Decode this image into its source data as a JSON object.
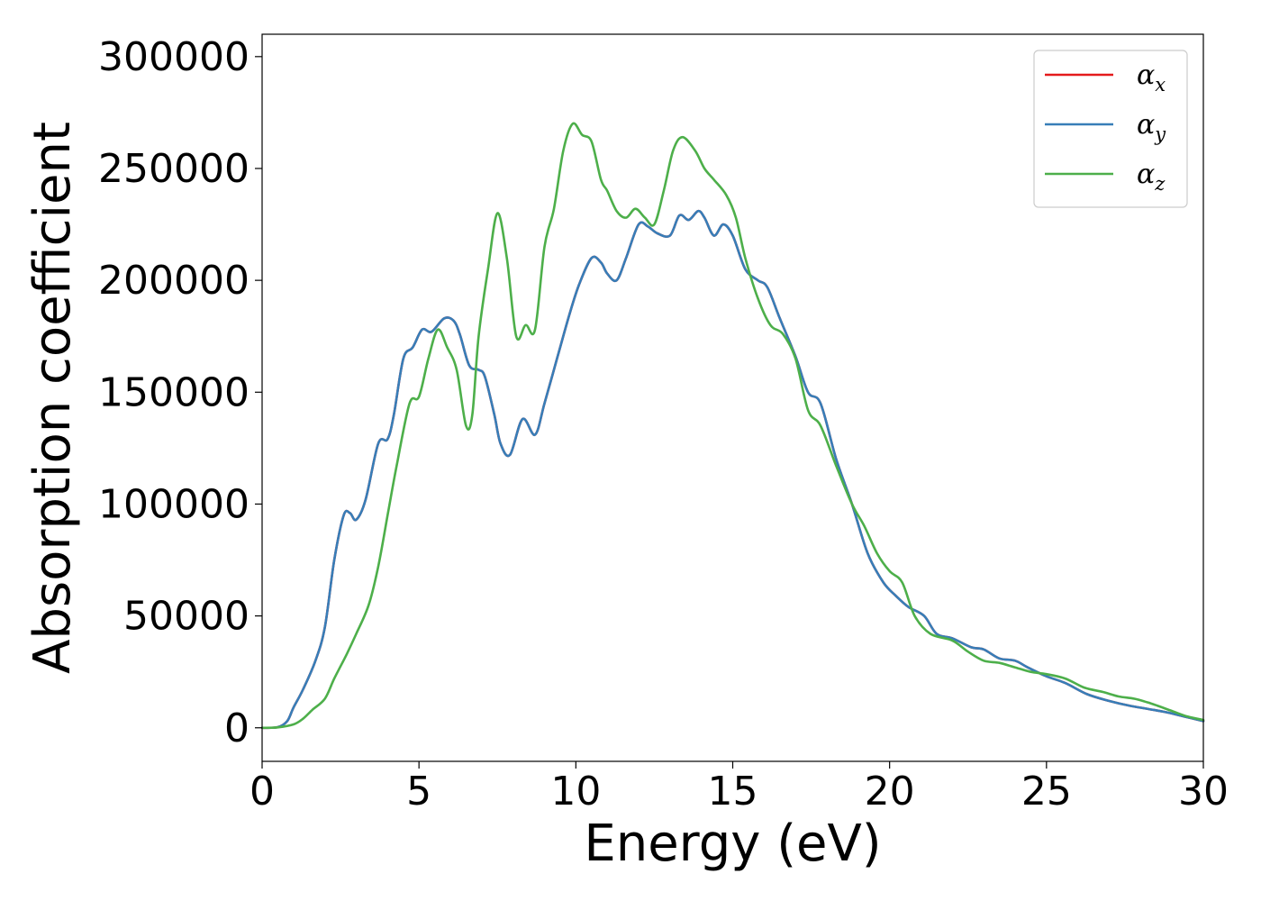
{
  "chart_data": {
    "type": "line",
    "title": "",
    "xlabel": "Energy (eV)",
    "ylabel": "Absorption coefficient",
    "xlim": [
      0,
      30
    ],
    "ylim": [
      -15000,
      310000
    ],
    "xticks": [
      0,
      5,
      10,
      15,
      20,
      25,
      30
    ],
    "yticks": [
      0,
      50000,
      100000,
      150000,
      200000,
      250000,
      300000
    ],
    "grid": false,
    "legend": "top-right",
    "series": [
      {
        "name": "α",
        "subscript": "x",
        "color": "#e41a1c",
        "x": [
          0,
          0.5,
          0.8,
          1.0,
          1.3,
          1.7,
          2.0,
          2.3,
          2.6,
          2.8,
          3.0,
          3.3,
          3.7,
          4.0,
          4.2,
          4.5,
          4.8,
          5.1,
          5.4,
          5.8,
          6.1,
          6.3,
          6.6,
          6.9,
          7.1,
          7.4,
          7.6,
          7.9,
          8.3,
          8.7,
          9.0,
          9.4,
          9.8,
          10.1,
          10.5,
          10.8,
          11.0,
          11.3,
          11.6,
          12.0,
          12.3,
          12.6,
          13.0,
          13.3,
          13.6,
          13.9,
          14.1,
          14.4,
          14.7,
          15.0,
          15.4,
          15.8,
          16.1,
          16.5,
          17.0,
          17.4,
          17.8,
          18.3,
          18.8,
          19.3,
          19.8,
          20.2,
          20.6,
          21.1,
          21.5,
          22.0,
          22.6,
          23.0,
          23.5,
          24.0,
          24.4,
          25.0,
          25.6,
          26.3,
          27.0,
          27.6,
          28.2,
          28.8,
          29.4,
          30.0
        ],
        "y": [
          0,
          300,
          3000,
          9000,
          17000,
          30000,
          45000,
          75000,
          95000,
          96000,
          93000,
          102000,
          127000,
          129000,
          140000,
          165000,
          170000,
          178000,
          177000,
          183000,
          182000,
          176000,
          162000,
          160000,
          157000,
          140000,
          127000,
          122000,
          138000,
          131000,
          145000,
          165000,
          185000,
          198000,
          210000,
          208000,
          203000,
          200000,
          210000,
          225000,
          224000,
          221000,
          220000,
          229000,
          227000,
          231000,
          228000,
          220000,
          225000,
          220000,
          205000,
          200000,
          197000,
          183000,
          166000,
          150000,
          145000,
          120000,
          100000,
          78000,
          65000,
          59000,
          54000,
          50000,
          42000,
          40000,
          36000,
          35000,
          31000,
          30000,
          27000,
          23000,
          20000,
          15000,
          12000,
          10000,
          8500,
          7000,
          5000,
          3000
        ]
      },
      {
        "name": "α",
        "subscript": "y",
        "color": "#377eb8",
        "x": [
          0,
          0.5,
          0.8,
          1.0,
          1.3,
          1.7,
          2.0,
          2.3,
          2.6,
          2.8,
          3.0,
          3.3,
          3.7,
          4.0,
          4.2,
          4.5,
          4.8,
          5.1,
          5.4,
          5.8,
          6.1,
          6.3,
          6.6,
          6.9,
          7.1,
          7.4,
          7.6,
          7.9,
          8.3,
          8.7,
          9.0,
          9.4,
          9.8,
          10.1,
          10.5,
          10.8,
          11.0,
          11.3,
          11.6,
          12.0,
          12.3,
          12.6,
          13.0,
          13.3,
          13.6,
          13.9,
          14.1,
          14.4,
          14.7,
          15.0,
          15.4,
          15.8,
          16.1,
          16.5,
          17.0,
          17.4,
          17.8,
          18.3,
          18.8,
          19.3,
          19.8,
          20.2,
          20.6,
          21.1,
          21.5,
          22.0,
          22.6,
          23.0,
          23.5,
          24.0,
          24.4,
          25.0,
          25.6,
          26.3,
          27.0,
          27.6,
          28.2,
          28.8,
          29.4,
          30.0
        ],
        "y": [
          0,
          300,
          3000,
          9000,
          17000,
          30000,
          45000,
          75000,
          95000,
          96000,
          93000,
          102000,
          127000,
          129000,
          140000,
          165000,
          170000,
          178000,
          177000,
          183000,
          182000,
          176000,
          162000,
          160000,
          157000,
          140000,
          127000,
          122000,
          138000,
          131000,
          145000,
          165000,
          185000,
          198000,
          210000,
          208000,
          203000,
          200000,
          210000,
          225000,
          224000,
          221000,
          220000,
          229000,
          227000,
          231000,
          228000,
          220000,
          225000,
          220000,
          205000,
          200000,
          197000,
          183000,
          166000,
          150000,
          145000,
          120000,
          100000,
          78000,
          65000,
          59000,
          54000,
          50000,
          42000,
          40000,
          36000,
          35000,
          31000,
          30000,
          27000,
          23000,
          20000,
          15000,
          12000,
          10000,
          8500,
          7000,
          5000,
          3000
        ]
      },
      {
        "name": "α",
        "subscript": "z",
        "color": "#4daf4a",
        "x": [
          0,
          0.5,
          1.0,
          1.3,
          1.6,
          2.0,
          2.3,
          2.7,
          3.0,
          3.4,
          3.7,
          4.0,
          4.3,
          4.7,
          5.0,
          5.3,
          5.6,
          5.9,
          6.2,
          6.5,
          6.7,
          6.9,
          7.2,
          7.5,
          7.8,
          8.1,
          8.4,
          8.7,
          9.0,
          9.3,
          9.6,
          9.9,
          10.2,
          10.5,
          10.8,
          11.0,
          11.3,
          11.6,
          11.9,
          12.2,
          12.5,
          12.8,
          13.1,
          13.4,
          13.8,
          14.1,
          14.4,
          14.8,
          15.1,
          15.4,
          15.8,
          16.2,
          16.6,
          17.0,
          17.4,
          17.8,
          18.3,
          18.8,
          19.2,
          19.6,
          20.0,
          20.4,
          20.8,
          21.3,
          22.0,
          22.5,
          23.0,
          23.5,
          24.0,
          24.5,
          25.0,
          25.6,
          26.2,
          26.8,
          27.3,
          27.8,
          28.3,
          29.0,
          29.5,
          30.0
        ],
        "y": [
          0,
          200,
          1500,
          4000,
          8000,
          13000,
          22000,
          33000,
          42000,
          55000,
          72000,
          95000,
          118000,
          145000,
          148000,
          165000,
          178000,
          170000,
          160000,
          135000,
          140000,
          175000,
          205000,
          230000,
          210000,
          175000,
          180000,
          178000,
          215000,
          232000,
          258000,
          270000,
          265000,
          262000,
          245000,
          240000,
          231000,
          228000,
          232000,
          228000,
          225000,
          240000,
          258000,
          264000,
          258000,
          250000,
          245000,
          238000,
          228000,
          210000,
          192000,
          180000,
          176000,
          165000,
          142000,
          135000,
          117000,
          100000,
          90000,
          78000,
          70000,
          65000,
          50000,
          42000,
          39000,
          34000,
          30000,
          29000,
          27000,
          25000,
          24000,
          22000,
          18000,
          16000,
          14000,
          13000,
          11000,
          7500,
          5000,
          3500
        ]
      }
    ]
  }
}
